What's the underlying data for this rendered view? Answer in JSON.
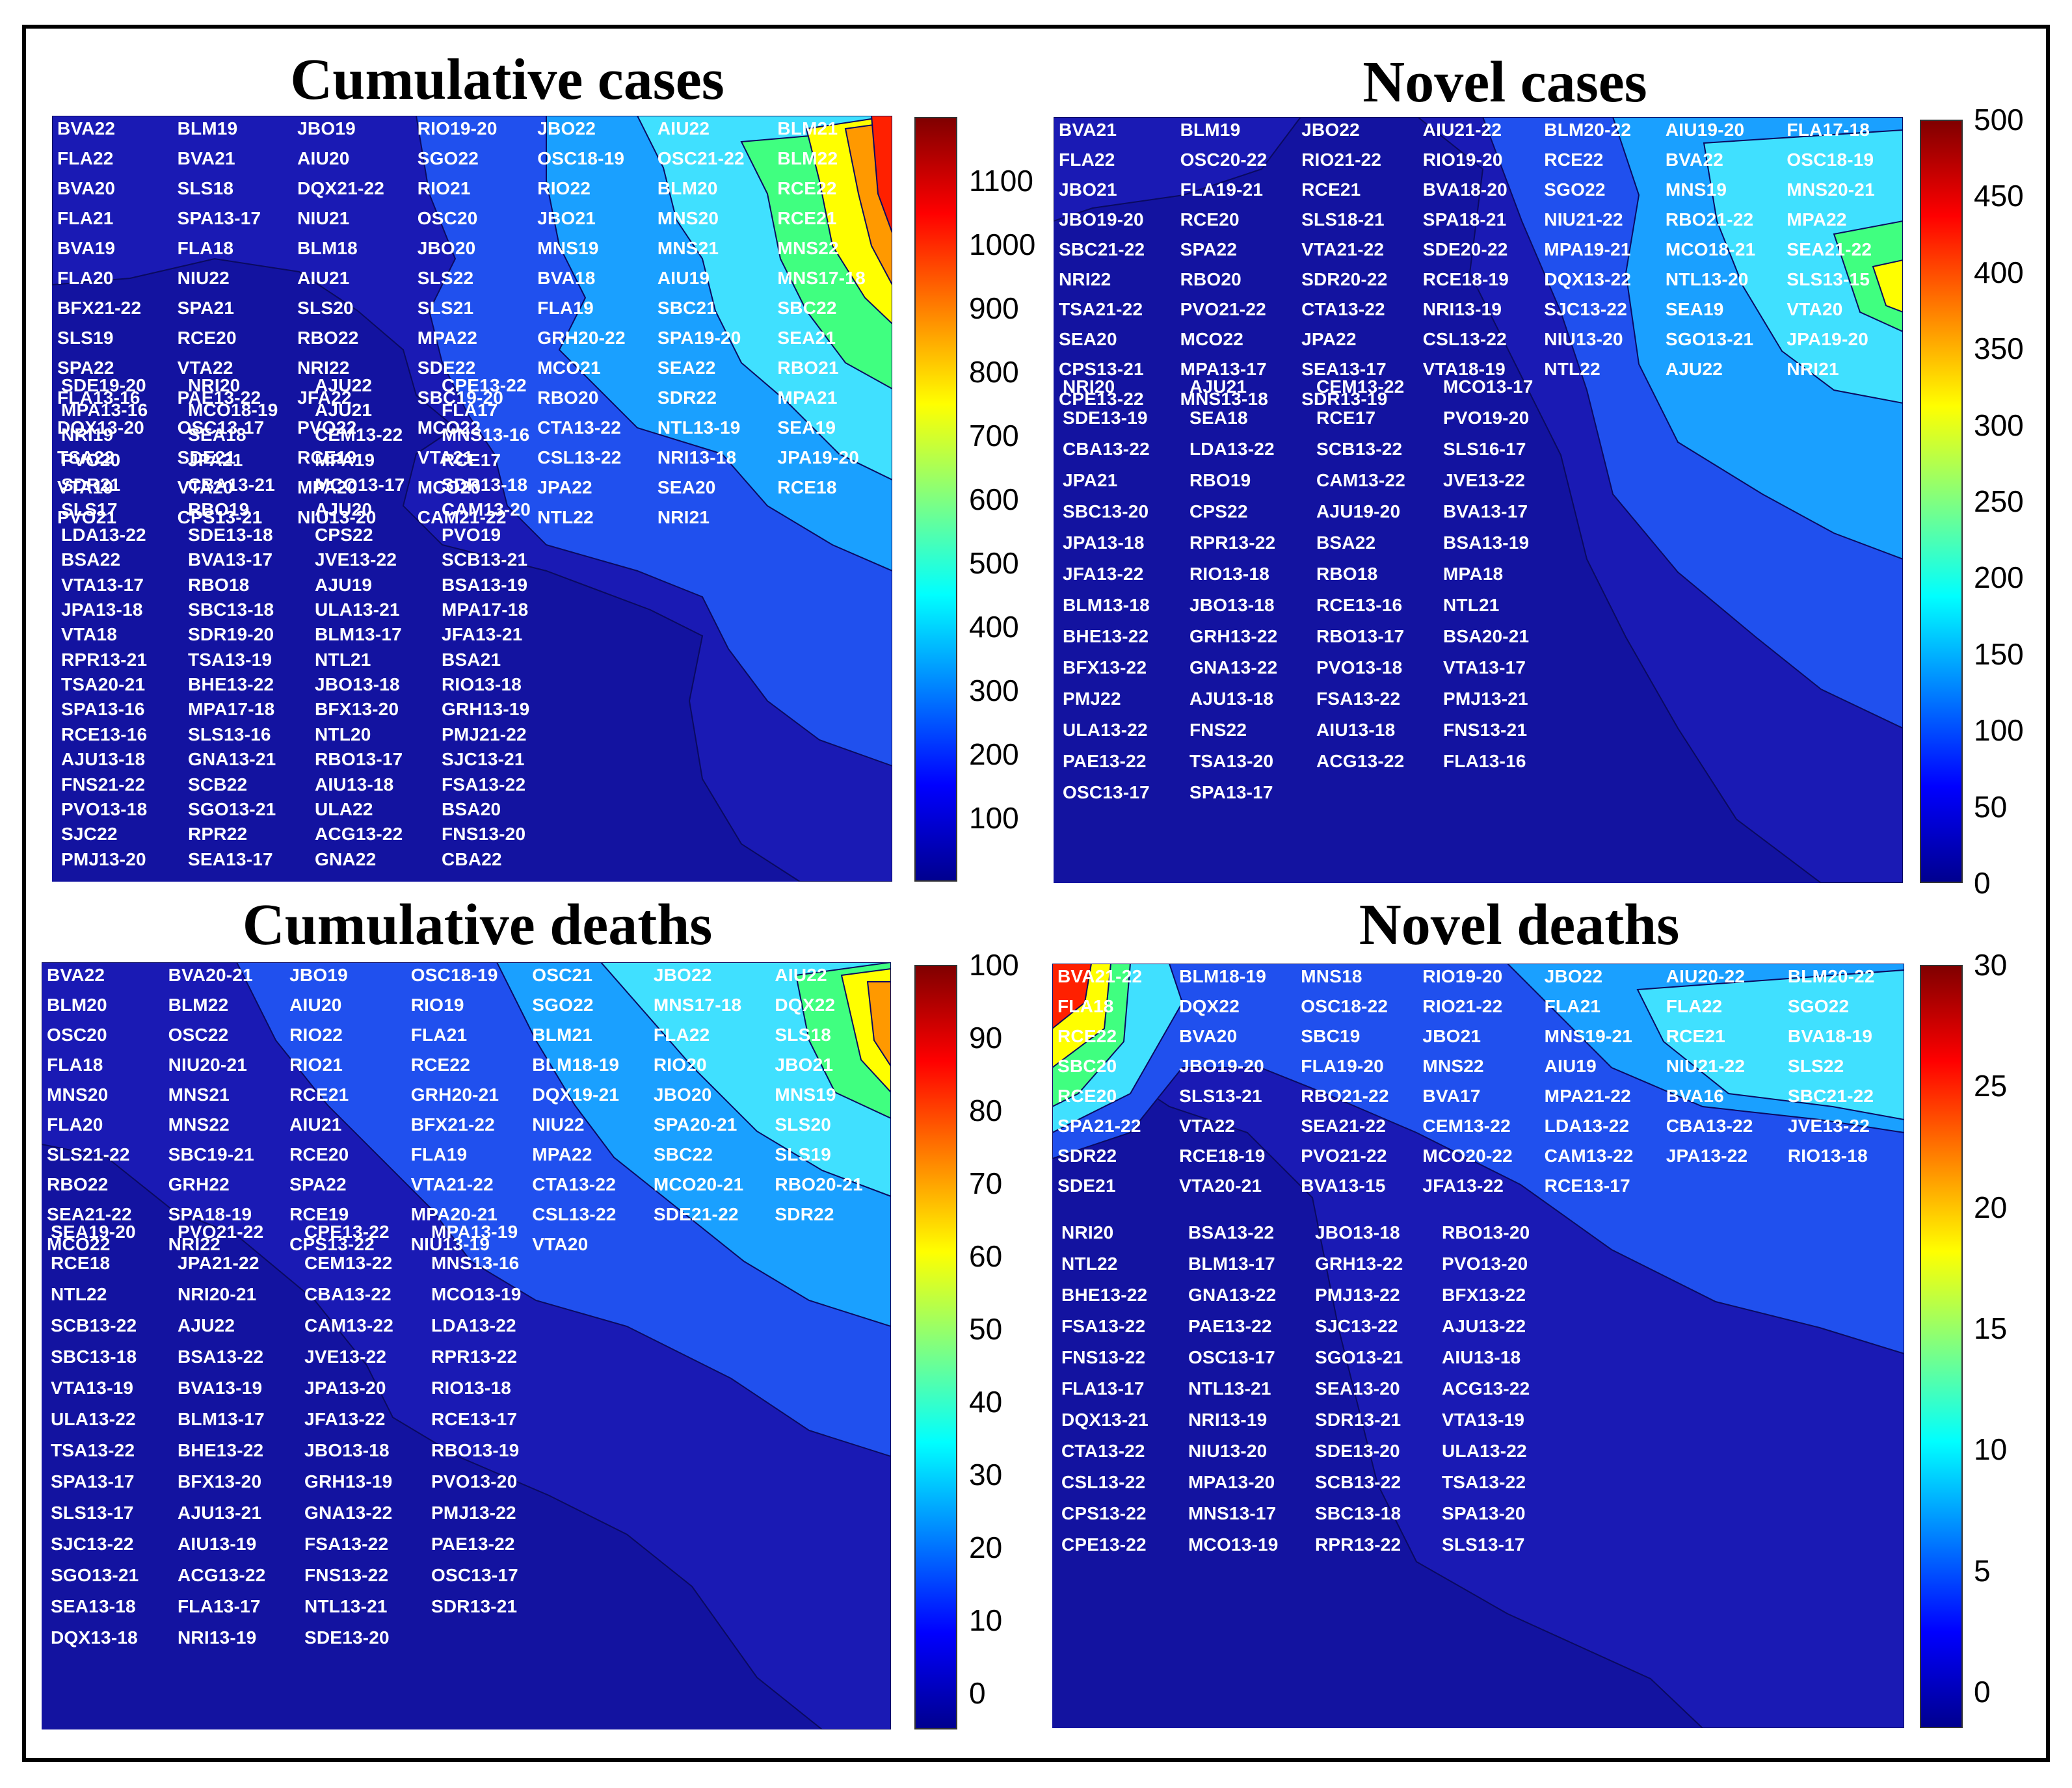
{
  "colors": {
    "background": "#1313a0",
    "low": "#1a1ab4",
    "mid": "#2050ee",
    "high": "#1aa0ff",
    "cyan": "#40e0ff",
    "green": "#40ff80",
    "yellow": "#ffff00",
    "orange": "#ff9900",
    "red": "#ff2000"
  },
  "chart_data": [
    {
      "type": "heatmap",
      "title": "Cumulative cases",
      "colorbar": {
        "ticks": [
          100,
          200,
          300,
          400,
          500,
          600,
          700,
          800,
          900,
          1000,
          1100
        ],
        "min": 0,
        "max": 1200
      },
      "labels": [
        "BVA22",
        "BLM19",
        "JBO19",
        "RIO19-20",
        "JBO22",
        "AIU22",
        "BLM21",
        "FLA22",
        "BVA21",
        "AIU20",
        "SGO22",
        "OSC18-19",
        "OSC21-22",
        "BLM22",
        "BVA20",
        "SLS18",
        "DQX21-22",
        "RIO21",
        "RIO22",
        "BLM20",
        "RCE22",
        "FLA21",
        "SPA13-17",
        "NIU21",
        "OSC20",
        "JBO21",
        "MNS20",
        "RCE21",
        "BVA19",
        "FLA18",
        "BLM18",
        "JBO20",
        "MNS19",
        "MNS21",
        "MNS22",
        "FLA20",
        "NIU22",
        "AIU21",
        "SLS22",
        "BVA18",
        "AIU19",
        "MNS17-18",
        "BFX21-22",
        "SPA21",
        "SLS20",
        "SLS21",
        "FLA19",
        "SBC21",
        "SBC22",
        "SLS19",
        "RCE20",
        "RBO22",
        "MPA22",
        "GRH20-22",
        "SPA19-20",
        "SEA21",
        "SPA22",
        "VTA22",
        "NRI22",
        "SDE22",
        "MCO21",
        "SEA22",
        "RBO21",
        "FLA13-16",
        "PAE13-22",
        "JFA22",
        "SBC19-20",
        "RBO20",
        "SDR22",
        "MPA21",
        "DQX13-20",
        "OSC13-17",
        "PVO22",
        "MCO22",
        "CTA13-22",
        "NTL13-19",
        "SEA19",
        "TSA22",
        "SDE21",
        "RCE19",
        "VTA21",
        "CSL13-22",
        "NRI13-18",
        "JPA19-20",
        "VTA19",
        "VTA20",
        "MPA20",
        "MCO20",
        "JPA22",
        "SEA20",
        "RCE18",
        "PVO21",
        "CPS13-21",
        "NIU13-20",
        "CAM21-22",
        "NTL22",
        "NRI21",
        "SDE19-20",
        "NRI20",
        "AJU22",
        "CPE13-22",
        "MPA13-16",
        "MCO18-19",
        "AJU21",
        "FLA17",
        "NRI19",
        "SEA18",
        "CEM13-22",
        "MNS13-16",
        "PVO20",
        "JPA21",
        "MPA19",
        "RCE17",
        "SDR21",
        "CBA13-21",
        "MCO13-17",
        "SDR13-18",
        "SLS17",
        "RBO19",
        "AJU20",
        "CAM13-20",
        "LDA13-22",
        "SDE13-18",
        "CPS22",
        "PVO19",
        "BSA22",
        "BVA13-17",
        "JVE13-22",
        "SCB13-21",
        "VTA13-17",
        "RBO18",
        "AJU19",
        "BSA13-19",
        "JPA13-18",
        "SBC13-18",
        "ULA13-21",
        "MPA17-18",
        "VTA18",
        "SDR19-20",
        "BLM13-17",
        "JFA13-21",
        "RPR13-21",
        "TSA13-19",
        "NTL21",
        "BSA21",
        "TSA20-21",
        "BHE13-22",
        "JBO13-18",
        "RIO13-18",
        "SPA13-16",
        "MPA17-18",
        "BFX13-20",
        "GRH13-19",
        "RCE13-16",
        "SLS13-16",
        "NTL20",
        "PMJ21-22",
        "AJU13-18",
        "GNA13-21",
        "RBO13-17",
        "SJC13-21",
        "FNS21-22",
        "SCB22",
        "AIU13-18",
        "FSA13-22",
        "PVO13-18",
        "SGO13-21",
        "ULA22",
        "BSA20",
        "SJC22",
        "RPR22",
        "ACG13-22",
        "FNS13-20",
        "PMJ13-20",
        "SEA13-17",
        "GNA22",
        "CBA22"
      ]
    },
    {
      "type": "heatmap",
      "title": "Novel cases",
      "colorbar": {
        "ticks": [
          0,
          50,
          100,
          150,
          200,
          250,
          300,
          350,
          400,
          450,
          500
        ],
        "min": 0,
        "max": 500
      },
      "labels": [
        "BVA21",
        "BLM19",
        "JBO22",
        "AIU21-22",
        "BLM20-22",
        "AIU19-20",
        "FLA17-18",
        "FLA22",
        "OSC20-22",
        "RIO21-22",
        "RIO19-20",
        "RCE22",
        "BVA22",
        "OSC18-19",
        "JBO21",
        "FLA19-21",
        "RCE21",
        "BVA18-20",
        "SGO22",
        "MNS19",
        "MNS20-21",
        "JBO19-20",
        "RCE20",
        "SLS18-21",
        "SPA18-21",
        "NIU21-22",
        "RBO21-22",
        "MPA22",
        "SBC21-22",
        "SPA22",
        "VTA21-22",
        "SDE20-22",
        "MPA19-21",
        "MCO18-21",
        "SEA21-22",
        "NRI22",
        "RBO20",
        "SDR20-22",
        "RCE18-19",
        "DQX13-22",
        "NTL13-20",
        "SLS13-15",
        "TSA21-22",
        "PVO21-22",
        "CTA13-22",
        "NRI13-19",
        "SJC13-22",
        "SEA19",
        "VTA20",
        "SEA20",
        "MCO22",
        "JPA22",
        "CSL13-22",
        "NIU13-20",
        "SGO13-21",
        "JPA19-20",
        "CPS13-21",
        "MPA13-17",
        "SEA13-17",
        "VTA18-19",
        "NTL22",
        "AJU22",
        "NRI21",
        "CPE13-22",
        "MNS13-18",
        "SDR13-19",
        "NRI20",
        "AJU21",
        "CEM13-22",
        "MCO13-17",
        "SDE13-19",
        "SEA18",
        "RCE17",
        "PVO19-20",
        "CBA13-22",
        "LDA13-22",
        "SCB13-22",
        "SLS16-17",
        "JPA21",
        "RBO19",
        "CAM13-22",
        "JVE13-22",
        "SBC13-20",
        "CPS22",
        "AJU19-20",
        "BVA13-17",
        "JPA13-18",
        "RPR13-22",
        "BSA22",
        "BSA13-19",
        "JFA13-22",
        "RIO13-18",
        "RBO18",
        "MPA18",
        "BLM13-18",
        "JBO13-18",
        "RCE13-16",
        "NTL21",
        "BHE13-22",
        "GRH13-22",
        "RBO13-17",
        "BSA20-21",
        "BFX13-22",
        "GNA13-22",
        "PVO13-18",
        "VTA13-17",
        "PMJ22",
        "AJU13-18",
        "FSA13-22",
        "PMJ13-21",
        "ULA13-22",
        "FNS22",
        "AIU13-18",
        "FNS13-21",
        "PAE13-22",
        "TSA13-20",
        "ACG13-22",
        "FLA13-16",
        "OSC13-17",
        "SPA13-17"
      ]
    },
    {
      "type": "heatmap",
      "title": "Cumulative deaths",
      "colorbar": {
        "ticks": [
          0,
          10,
          20,
          30,
          40,
          50,
          60,
          70,
          80,
          90,
          100
        ],
        "min": -5,
        "max": 100
      },
      "labels": [
        "BVA22",
        "BVA20-21",
        "JBO19",
        "OSC18-19",
        "OSC21",
        "JBO22",
        "AIU22",
        "BLM20",
        "BLM22",
        "AIU20",
        "RIO19",
        "SGO22",
        "MNS17-18",
        "DQX22",
        "OSC20",
        "OSC22",
        "RIO22",
        "FLA21",
        "BLM21",
        "FLA22",
        "SLS18",
        "FLA18",
        "NIU20-21",
        "RIO21",
        "RCE22",
        "BLM18-19",
        "RIO20",
        "JBO21",
        "MNS20",
        "MNS21",
        "RCE21",
        "GRH20-21",
        "DQX19-21",
        "JBO20",
        "MNS19",
        "FLA20",
        "MNS22",
        "AIU21",
        "BFX21-22",
        "NIU22",
        "SPA20-21",
        "SLS20",
        "SLS21-22",
        "SBC19-21",
        "RCE20",
        "FLA19",
        "MPA22",
        "SBC22",
        "SLS19",
        "RBO22",
        "GRH22",
        "SPA22",
        "VTA21-22",
        "CTA13-22",
        "MCO20-21",
        "RBO20-21",
        "SEA21-22",
        "SPA18-19",
        "RCE19",
        "MPA20-21",
        "CSL13-22",
        "SDE21-22",
        "SDR22",
        "MCO22",
        "NRI22",
        "CPS13-22",
        "NIU13-19",
        "VTA20",
        "SEA19-20",
        "PVO21-22",
        "CPE13-22",
        "MPA13-19",
        "RCE18",
        "JPA21-22",
        "CEM13-22",
        "MNS13-16",
        "NTL22",
        "NRI20-21",
        "CBA13-22",
        "MCO13-19",
        "SCB13-22",
        "AJU22",
        "CAM13-22",
        "LDA13-22",
        "SBC13-18",
        "BSA13-22",
        "JVE13-22",
        "RPR13-22",
        "VTA13-19",
        "BVA13-19",
        "JPA13-20",
        "RIO13-18",
        "ULA13-22",
        "BLM13-17",
        "JFA13-22",
        "RCE13-17",
        "TSA13-22",
        "BHE13-22",
        "JBO13-18",
        "RBO13-19",
        "SPA13-17",
        "BFX13-20",
        "GRH13-19",
        "PVO13-20",
        "SLS13-17",
        "AJU13-21",
        "GNA13-22",
        "PMJ13-22",
        "SJC13-22",
        "AIU13-19",
        "FSA13-22",
        "PAE13-22",
        "SGO13-21",
        "ACG13-22",
        "FNS13-22",
        "OSC13-17",
        "SEA13-18",
        "FLA13-17",
        "NTL13-21",
        "SDR13-21",
        "DQX13-18",
        "NRI13-19",
        "SDE13-20"
      ]
    },
    {
      "type": "heatmap",
      "title": "Novel deaths",
      "colorbar": {
        "ticks": [
          0,
          5,
          10,
          15,
          20,
          25,
          30
        ],
        "min": -1.5,
        "max": 30
      },
      "labels": [
        "BVA21-22",
        "BLM18-19",
        "MNS18",
        "RIO19-20",
        "JBO22",
        "AIU20-22",
        "BLM20-22",
        "FLA18",
        "DQX22",
        "OSC18-22",
        "RIO21-22",
        "FLA21",
        "FLA22",
        "SGO22",
        "RCE22",
        "BVA20",
        "SBC19",
        "JBO21",
        "MNS19-21",
        "RCE21",
        "BVA18-19",
        "SBC20",
        "JBO19-20",
        "FLA19-20",
        "MNS22",
        "AIU19",
        "NIU21-22",
        "SLS22",
        "RCE20",
        "SLS13-21",
        "RBO21-22",
        "BVA17",
        "MPA21-22",
        "BVA16",
        "SBC21-22",
        "SPA21-22",
        "VTA22",
        "SEA21-22",
        "CEM13-22",
        "LDA13-22",
        "CBA13-22",
        "JVE13-22",
        "SDR22",
        "RCE18-19",
        "PVO21-22",
        "MCO20-22",
        "CAM13-22",
        "JPA13-22",
        "RIO13-18",
        "SDE21",
        "VTA20-21",
        "BVA13-15",
        "JFA13-22",
        "RCE13-17",
        "NRI20",
        "BSA13-22",
        "JBO13-18",
        "RBO13-20",
        "NTL22",
        "BLM13-17",
        "GRH13-22",
        "PVO13-20",
        "BHE13-22",
        "GNA13-22",
        "PMJ13-22",
        "BFX13-22",
        "FSA13-22",
        "PAE13-22",
        "SJC13-22",
        "AJU13-22",
        "FNS13-22",
        "OSC13-17",
        "SGO13-21",
        "AIU13-18",
        "FLA13-17",
        "NTL13-21",
        "SEA13-20",
        "ACG13-22",
        "DQX13-21",
        "NRI13-19",
        "SDR13-21",
        "VTA13-19",
        "CTA13-22",
        "NIU13-20",
        "SDE13-20",
        "ULA13-22",
        "CSL13-22",
        "MPA13-20",
        "SCB13-22",
        "TSA13-22",
        "CPS13-22",
        "MNS13-17",
        "SBC13-18",
        "SPA13-20",
        "CPE13-22",
        "MCO13-19",
        "RPR13-22",
        "SLS13-17"
      ]
    }
  ]
}
